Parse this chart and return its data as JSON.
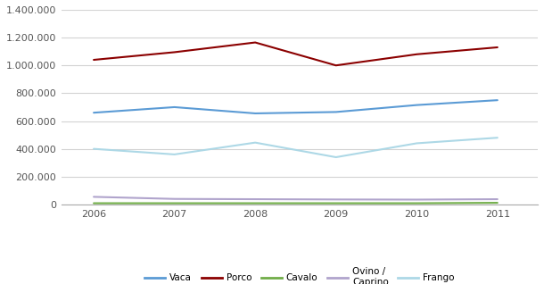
{
  "years": [
    2006,
    2007,
    2008,
    2009,
    2010,
    2011
  ],
  "series": {
    "Vaca": {
      "values": [
        660000,
        700000,
        655000,
        665000,
        715000,
        750000
      ],
      "color": "#5b9bd5",
      "linewidth": 1.5
    },
    "Porco": {
      "values": [
        1040000,
        1095000,
        1165000,
        1000000,
        1080000,
        1130000
      ],
      "color": "#8b0000",
      "linewidth": 1.5
    },
    "Cavalo": {
      "values": [
        9000,
        9000,
        9000,
        9000,
        9000,
        12000
      ],
      "color": "#70ad47",
      "linewidth": 1.5
    },
    "Ovino /\nCaprino": {
      "values": [
        55000,
        40000,
        38000,
        36000,
        35000,
        38000
      ],
      "color": "#b0a4cc",
      "linewidth": 1.5
    },
    "Frango": {
      "values": [
        400000,
        360000,
        445000,
        340000,
        440000,
        480000
      ],
      "color": "#add8e6",
      "linewidth": 1.5
    }
  },
  "ylim": [
    0,
    1400000
  ],
  "yticks": [
    0,
    200000,
    400000,
    600000,
    800000,
    1000000,
    1200000,
    1400000
  ],
  "ytick_labels": [
    "0",
    "200.000",
    "400.000",
    "600.000",
    "800.000",
    "1.000.000",
    "1.200.000",
    "1.400.000"
  ],
  "background_color": "#ffffff",
  "grid_color": "#d3d3d3",
  "legend_labels": [
    "Vaca",
    "Porco",
    "Cavalo",
    "Ovino /\nCaprino",
    "Frango"
  ],
  "legend_colors": [
    "#5b9bd5",
    "#8b0000",
    "#70ad47",
    "#b0a4cc",
    "#add8e6"
  ]
}
